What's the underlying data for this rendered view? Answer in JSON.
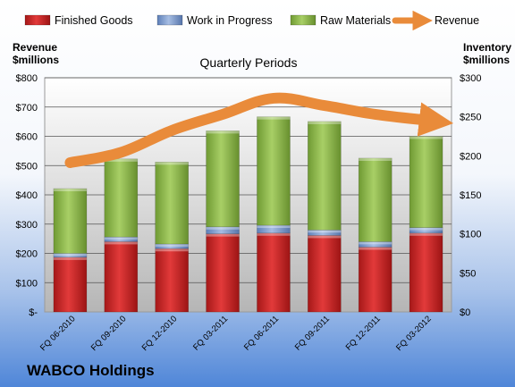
{
  "chart_data": {
    "type": "bar",
    "title": "Quarterly Periods",
    "brand": "WABCO Holdings",
    "ylabel_left": [
      "Revenue",
      "$millions"
    ],
    "ylabel_right": [
      "Inventory",
      "$millions"
    ],
    "categories": [
      "FQ 06-2010",
      "FQ 09-2010",
      "FQ 12-2010",
      "FQ 03-2011",
      "FQ 06-2011",
      "FQ 09-2011",
      "FQ 12-2011",
      "FQ 03-2012"
    ],
    "stacked_axis": "right",
    "ylim_left": [
      0,
      800
    ],
    "ylim_right": [
      0,
      300
    ],
    "left_ticks": [
      {
        "value": 0,
        "label": "$-"
      },
      {
        "value": 100,
        "label": "$100"
      },
      {
        "value": 200,
        "label": "$200"
      },
      {
        "value": 300,
        "label": "$300"
      },
      {
        "value": 400,
        "label": "$400"
      },
      {
        "value": 500,
        "label": "$500"
      },
      {
        "value": 600,
        "label": "$600"
      },
      {
        "value": 700,
        "label": "$700"
      },
      {
        "value": 800,
        "label": "$800"
      }
    ],
    "right_ticks": [
      {
        "value": 0,
        "label": "$0"
      },
      {
        "value": 50,
        "label": "$50"
      },
      {
        "value": 100,
        "label": "$100"
      },
      {
        "value": 150,
        "label": "$150"
      },
      {
        "value": 200,
        "label": "$200"
      },
      {
        "value": 250,
        "label": "$250"
      },
      {
        "value": 300,
        "label": "$300"
      }
    ],
    "series": [
      {
        "name": "Finished Goods",
        "color": "#cc2222",
        "values": [
          70,
          90,
          81,
          100,
          101,
          98,
          83,
          101
        ]
      },
      {
        "name": "Work in Progress",
        "color": "#7a9bd0",
        "values": [
          5,
          6,
          6,
          9,
          10,
          7,
          7,
          7
        ]
      },
      {
        "name": "Raw Materials",
        "color": "#8fbc4a",
        "values": [
          83,
          100,
          105,
          123,
          139,
          139,
          107,
          117
        ]
      }
    ],
    "line_series": {
      "name": "Revenue",
      "axis": "left",
      "color": "#e98b3a",
      "values": [
        510,
        545,
        620,
        675,
        730,
        705,
        675,
        655
      ]
    },
    "grid": true,
    "legend": "top"
  },
  "colors": {
    "background_top": "#ffffff",
    "background_bottom": "#4f86d8",
    "grid": "#555555"
  }
}
